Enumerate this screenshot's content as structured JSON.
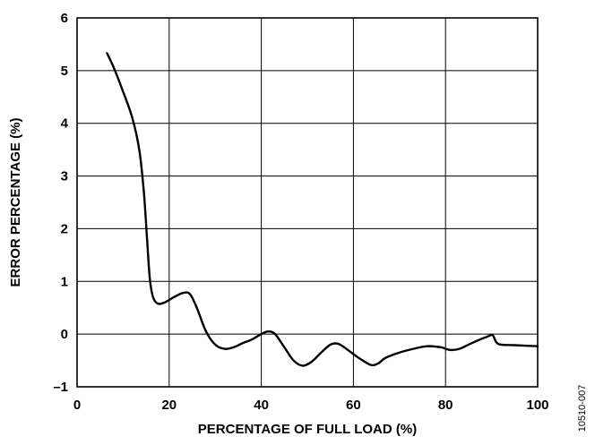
{
  "chart_data": {
    "type": "line",
    "title": "",
    "xlabel": "PERCENTAGE OF FULL LOAD (%)",
    "ylabel": "ERROR PERCENTAGE (%)",
    "xlim": [
      0,
      100
    ],
    "ylim": [
      -1,
      6
    ],
    "xticks": [
      0,
      20,
      40,
      60,
      80,
      100
    ],
    "yticks": [
      -1,
      0,
      1,
      2,
      3,
      4,
      5,
      6
    ],
    "xtick_labels": [
      "0",
      "20",
      "40",
      "60",
      "80",
      "100"
    ],
    "ytick_labels": [
      "–1",
      "0",
      "1",
      "2",
      "3",
      "4",
      "5",
      "6"
    ],
    "grid": true,
    "figure_id": "10510-007",
    "series": [
      {
        "color": "#000000",
        "x": [
          6.5,
          8,
          10,
          12,
          13.5,
          14.5,
          15.2,
          15.8,
          16.5,
          17.5,
          19,
          21,
          23,
          24.5,
          26,
          28,
          30,
          32,
          34,
          36,
          38,
          40,
          41.5,
          43,
          45,
          47,
          49,
          51,
          53,
          55,
          56.5,
          58,
          60,
          62,
          64,
          65.5,
          67,
          70,
          73,
          76,
          79,
          81,
          83,
          85,
          87,
          89,
          90.2,
          91,
          92,
          95,
          100
        ],
        "y": [
          5.33,
          5.05,
          4.6,
          4.1,
          3.5,
          2.7,
          1.8,
          1.05,
          0.7,
          0.58,
          0.6,
          0.7,
          0.78,
          0.76,
          0.5,
          0.05,
          -0.2,
          -0.28,
          -0.25,
          -0.17,
          -0.1,
          0.0,
          0.05,
          0.0,
          -0.25,
          -0.5,
          -0.6,
          -0.52,
          -0.35,
          -0.2,
          -0.18,
          -0.25,
          -0.38,
          -0.5,
          -0.59,
          -0.55,
          -0.45,
          -0.35,
          -0.28,
          -0.23,
          -0.25,
          -0.3,
          -0.28,
          -0.2,
          -0.12,
          -0.05,
          -0.02,
          -0.15,
          -0.2,
          -0.21,
          -0.23
        ]
      }
    ]
  }
}
